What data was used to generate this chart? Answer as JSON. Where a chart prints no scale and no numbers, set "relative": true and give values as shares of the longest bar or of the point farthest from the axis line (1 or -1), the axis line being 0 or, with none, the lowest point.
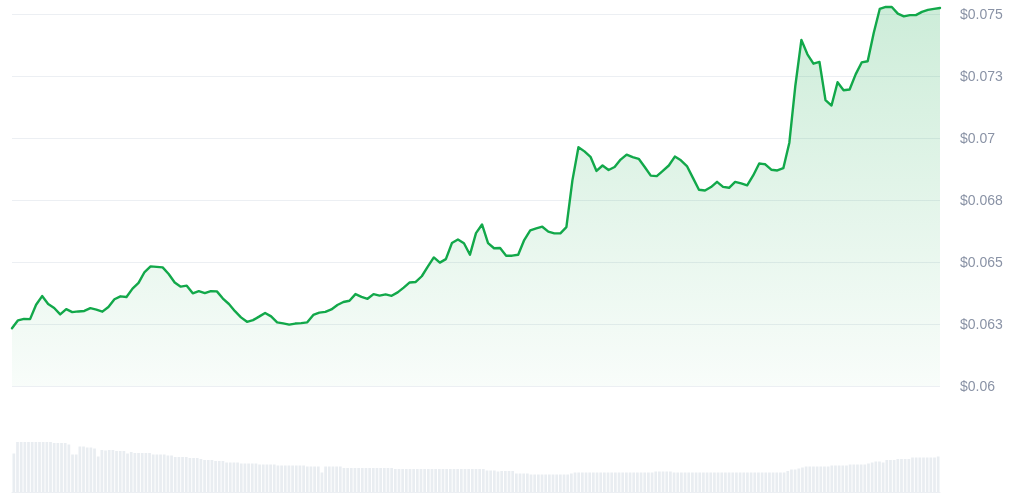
{
  "chart_data": [
    {
      "type": "area",
      "color": "#12a84a",
      "marker": "none",
      "grid": "y",
      "categories": [
        null,
        null,
        null,
        null,
        null,
        null,
        null,
        null,
        null,
        null,
        null,
        null,
        null,
        null,
        null,
        null,
        null,
        null,
        null,
        null,
        null,
        null,
        null,
        null,
        null,
        null,
        null,
        null,
        null,
        null,
        null,
        null,
        null,
        null,
        null,
        null,
        null,
        null,
        null,
        null,
        null,
        null,
        null,
        null,
        null,
        null,
        null,
        null,
        null,
        null,
        null,
        null,
        null,
        null,
        null,
        null,
        null,
        null,
        null,
        null,
        null,
        null,
        null,
        null,
        null,
        null,
        null,
        null,
        null,
        null,
        null,
        null,
        null,
        null,
        null,
        null,
        null,
        null,
        null,
        null,
        null,
        null,
        null,
        null,
        null,
        null,
        null,
        null,
        null,
        null,
        null,
        null,
        null,
        null,
        null,
        null,
        null,
        null,
        null,
        null,
        null,
        null,
        null,
        null,
        null,
        null,
        null,
        null,
        null,
        null,
        null,
        null,
        null,
        null,
        null,
        null,
        null,
        null,
        null,
        null,
        null,
        null,
        null,
        null,
        null,
        null,
        null,
        null,
        null,
        null,
        null,
        null,
        null,
        null,
        null,
        null,
        null,
        null,
        null,
        null,
        null,
        null,
        null,
        null,
        null,
        null,
        null,
        null,
        null,
        null,
        null,
        null,
        null,
        null,
        null
      ],
      "values": [
        0.06233,
        0.06265,
        0.06271,
        0.0627,
        0.06328,
        0.06363,
        0.06331,
        0.06315,
        0.06289,
        0.0631,
        0.06298,
        0.06301,
        0.06303,
        0.06314,
        0.06308,
        0.063,
        0.06319,
        0.0635,
        0.06362,
        0.06359,
        0.06393,
        0.06416,
        0.0646,
        0.06483,
        0.06481,
        0.06479,
        0.06452,
        0.06418,
        0.06401,
        0.06405,
        0.06374,
        0.06383,
        0.06375,
        0.06383,
        0.06382,
        0.06353,
        0.06331,
        0.06302,
        0.06277,
        0.06259,
        0.06266,
        0.0628,
        0.06295,
        0.06281,
        0.06257,
        0.06253,
        0.06248,
        0.06252,
        0.06254,
        0.06257,
        0.06287,
        0.06296,
        0.06299,
        0.06309,
        0.06327,
        0.06339,
        0.06344,
        0.06371,
        0.0636,
        0.06352,
        0.06371,
        0.06365,
        0.0637,
        0.06364,
        0.06378,
        0.06397,
        0.06418,
        0.0642,
        0.06443,
        0.06482,
        0.06519,
        0.06498,
        0.06512,
        0.06577,
        0.06591,
        0.06576,
        0.0653,
        0.06617,
        0.06652,
        0.06577,
        0.06556,
        0.06557,
        0.06526,
        0.06526,
        0.0653,
        0.06589,
        0.06628,
        0.06636,
        0.06643,
        0.06623,
        0.06616,
        0.06616,
        0.06641,
        0.0683,
        0.06964,
        0.06947,
        0.06925,
        0.06868,
        0.0689,
        0.06872,
        0.06884,
        0.06914,
        0.06934,
        0.06924,
        0.06917,
        0.06884,
        0.06849,
        0.06847,
        0.06868,
        0.0689,
        0.06926,
        0.06911,
        0.06888,
        0.0684,
        0.06792,
        0.06789,
        0.06803,
        0.06824,
        0.06804,
        0.068,
        0.06824,
        0.06818,
        0.0681,
        0.0685,
        0.06898,
        0.06895,
        0.06873,
        0.0687,
        0.06879,
        0.06982,
        0.07213,
        0.07397,
        0.07339,
        0.07301,
        0.07308,
        0.07154,
        0.07132,
        0.07226,
        0.07194,
        0.07197,
        0.07258,
        0.07306,
        0.07311,
        0.07425,
        0.07522,
        0.0753,
        0.0753,
        0.07503,
        0.07492,
        0.07497,
        0.07497,
        0.0751,
        0.07518,
        0.07522,
        0.07526
      ],
      "ylim": [
        0.06,
        0.0755
      ],
      "yticks": [
        {
          "value": 0.06,
          "label": "$0.06"
        },
        {
          "value": 0.0625,
          "label": "$0.063"
        },
        {
          "value": 0.065,
          "label": "$0.065"
        },
        {
          "value": 0.0675,
          "label": "$0.068"
        },
        {
          "value": 0.07,
          "label": "$0.07"
        },
        {
          "value": 0.0725,
          "label": "$0.073"
        },
        {
          "value": 0.075,
          "label": "$0.075"
        }
      ]
    },
    {
      "type": "bar",
      "relative": true,
      "color": "#e9edf1",
      "categories": [
        null,
        null,
        null,
        null,
        null,
        null,
        null,
        null,
        null,
        null,
        null,
        null,
        null,
        null,
        null,
        null,
        null,
        null,
        null,
        null,
        null,
        null,
        null,
        null,
        null,
        null,
        null,
        null,
        null,
        null,
        null,
        null,
        null,
        null,
        null,
        null,
        null,
        null,
        null,
        null,
        null,
        null,
        null,
        null,
        null,
        null,
        null,
        null,
        null,
        null,
        null,
        null,
        null,
        null,
        null,
        null,
        null,
        null,
        null,
        null,
        null,
        null,
        null,
        null,
        null,
        null,
        null,
        null,
        null,
        null,
        null,
        null,
        null,
        null,
        null,
        null,
        null,
        null,
        null,
        null,
        null,
        null,
        null,
        null,
        null,
        null,
        null,
        null,
        null,
        null,
        null,
        null,
        null,
        null,
        null,
        null,
        null,
        null,
        null,
        null,
        null,
        null,
        null,
        null,
        null,
        null,
        null,
        null,
        null,
        null,
        null,
        null,
        null,
        null,
        null,
        null,
        null,
        null,
        null,
        null,
        null,
        null,
        null,
        null,
        null,
        null,
        null,
        null,
        null,
        null,
        null,
        null,
        null,
        null,
        null,
        null,
        null,
        null,
        null,
        null,
        null,
        null,
        null,
        null,
        null,
        null,
        null,
        null,
        null,
        null,
        null,
        null,
        null,
        null,
        null,
        null,
        null,
        null,
        null,
        null,
        null,
        null,
        null,
        null,
        null,
        null,
        null,
        null,
        null,
        null,
        null,
        null,
        null,
        null,
        null,
        null,
        null,
        null,
        null,
        null,
        null,
        null,
        null,
        null,
        null,
        null,
        null,
        null,
        null,
        null,
        null,
        null,
        null,
        null,
        null,
        null,
        null,
        null,
        null,
        null,
        null,
        null,
        null,
        null,
        null,
        null,
        null,
        null,
        null,
        null,
        null,
        null,
        null,
        null,
        null,
        null,
        null,
        null,
        null,
        null,
        null,
        null,
        null,
        null,
        null,
        null,
        null,
        null,
        null,
        null,
        null,
        null,
        null,
        null,
        null,
        null,
        null,
        null,
        null,
        null,
        null,
        null,
        null,
        null,
        null,
        null,
        null,
        null,
        null,
        null,
        null,
        null,
        null
      ],
      "values": [
        0.77,
        1,
        1,
        1,
        1,
        1,
        1,
        1,
        1,
        1,
        1,
        0.98,
        0.98,
        0.98,
        0.98,
        0.95,
        0.75,
        0.75,
        0.91,
        0.91,
        0.89,
        0.89,
        0.87,
        0.71,
        0.84,
        0.83,
        0.84,
        0.84,
        0.82,
        0.82,
        0.82,
        0.77,
        0.8,
        0.78,
        0.78,
        0.78,
        0.78,
        0.78,
        0.75,
        0.75,
        0.75,
        0.75,
        0.73,
        0.73,
        0.7,
        0.7,
        0.7,
        0.7,
        0.68,
        0.68,
        0.68,
        0.66,
        0.64,
        0.64,
        0.64,
        0.62,
        0.62,
        0.62,
        0.59,
        0.59,
        0.59,
        0.59,
        0.57,
        0.57,
        0.57,
        0.57,
        0.57,
        0.55,
        0.55,
        0.55,
        0.55,
        0.55,
        0.53,
        0.53,
        0.53,
        0.53,
        0.53,
        0.53,
        0.53,
        0.53,
        0.51,
        0.51,
        0.51,
        0.51,
        0.39,
        0.51,
        0.51,
        0.51,
        0.51,
        0.51,
        0.48,
        0.48,
        0.48,
        0.48,
        0.48,
        0.48,
        0.48,
        0.48,
        0.48,
        0.48,
        0.48,
        0.48,
        0.48,
        0.48,
        0.46,
        0.46,
        0.46,
        0.46,
        0.46,
        0.46,
        0.46,
        0.46,
        0.46,
        0.46,
        0.46,
        0.46,
        0.46,
        0.46,
        0.46,
        0.46,
        0.46,
        0.46,
        0.46,
        0.46,
        0.46,
        0.46,
        0.46,
        0.46,
        0.46,
        0.43,
        0.43,
        0.43,
        0.41,
        0.42,
        0.42,
        0.42,
        0.42,
        0.37,
        0.37,
        0.37,
        0.37,
        0.35,
        0.35,
        0.35,
        0.35,
        0.35,
        0.35,
        0.35,
        0.35,
        0.35,
        0.35,
        0.35,
        0.37,
        0.39,
        0.39,
        0.39,
        0.39,
        0.39,
        0.39,
        0.39,
        0.39,
        0.39,
        0.39,
        0.39,
        0.39,
        0.39,
        0.39,
        0.39,
        0.39,
        0.39,
        0.39,
        0.39,
        0.39,
        0.39,
        0.39,
        0.41,
        0.41,
        0.41,
        0.41,
        0.41,
        0.39,
        0.39,
        0.39,
        0.39,
        0.39,
        0.39,
        0.39,
        0.39,
        0.39,
        0.39,
        0.39,
        0.39,
        0.39,
        0.39,
        0.39,
        0.39,
        0.39,
        0.39,
        0.39,
        0.39,
        0.39,
        0.39,
        0.39,
        0.39,
        0.39,
        0.39,
        0.39,
        0.39,
        0.39,
        0.39,
        0.39,
        0.42,
        0.45,
        0.45,
        0.47,
        0.49,
        0.51,
        0.51,
        0.51,
        0.51,
        0.51,
        0.51,
        0.51,
        0.53,
        0.53,
        0.53,
        0.53,
        0.53,
        0.55,
        0.55,
        0.55,
        0.55,
        0.55,
        0.57,
        0.59,
        0.61,
        0.61,
        0.59,
        0.64,
        0.64,
        0.64,
        0.66,
        0.66,
        0.66,
        0.66,
        0.69,
        0.69,
        0.69,
        0.69,
        0.69,
        0.69,
        0.69,
        0.71
      ]
    }
  ]
}
